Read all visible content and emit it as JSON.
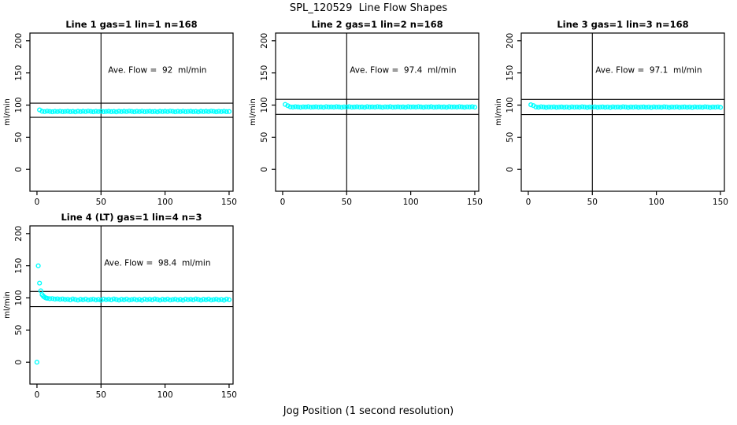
{
  "figure": {
    "main_title": "SPL_120529  Line Flow Shapes",
    "x_axis_label": "Jog Position (1 second resolution)",
    "y_axis_label": "ml/min",
    "background_color": "#FFFFFF",
    "point_color": "#00FFFF",
    "line_color": "#000000"
  },
  "chart_data": {
    "type": "scatter",
    "title": "SPL_120529  Line Flow Shapes",
    "xlabel": "Jog Position (1 second resolution)",
    "ylabel": "ml/min",
    "marker": "open-circle",
    "grid": false,
    "x_ticks": [
      0,
      50,
      100,
      150
    ],
    "y_ticks": [
      0,
      50,
      100,
      150,
      200
    ],
    "x_domain": [
      -5.5,
      153.1
    ],
    "y_domain": [
      -34,
      212
    ],
    "subplots": [
      {
        "title": "Line 1 gas=1 lin=1 n=168",
        "annotation": "Ave. Flow =  92  ml/min",
        "ave_flow_ml_min": 92,
        "n_points": 168,
        "vline_x": 50,
        "hlines": [
          103,
          81
        ],
        "series": {
          "x_start": 2,
          "x_step": 2,
          "y": [
            92.5,
            90.3,
            89.8,
            90.6,
            90.1,
            89.6,
            90.2,
            89.9,
            90.5,
            89.7,
            90.0,
            90.4,
            89.7,
            90.1,
            89.5,
            90.4,
            89.9,
            90.3,
            89.8,
            90.6,
            90.1,
            89.6,
            90.2,
            89.9,
            90.5,
            89.7,
            90.0,
            90.4,
            89.7,
            90.1,
            89.5,
            90.4,
            89.9,
            90.3,
            89.8,
            90.6,
            90.1,
            89.6,
            90.2,
            89.9,
            90.5,
            89.7,
            90.0,
            90.4,
            89.7,
            90.1,
            89.5,
            90.4,
            89.9,
            90.3,
            89.8,
            90.6,
            90.1,
            89.6,
            90.2,
            89.9,
            90.5,
            89.7,
            90.0,
            90.4,
            89.7,
            90.1,
            89.5,
            90.4,
            89.9,
            90.3,
            89.8,
            90.6,
            90.1,
            89.6,
            90.2,
            89.9,
            90.5,
            89.7,
            90.0
          ]
        },
        "extra_points": []
      },
      {
        "title": "Line 2 gas=1 lin=2 n=168",
        "annotation": "Ave. Flow =  97.4  ml/min",
        "ave_flow_ml_min": 97.4,
        "n_points": 168,
        "vline_x": 50,
        "hlines": [
          109,
          85.5
        ],
        "series": {
          "x_start": 2,
          "x_step": 2,
          "y": [
            101.0,
            99.0,
            97.2,
            96.8,
            97.5,
            97.1,
            96.6,
            97.2,
            96.9,
            97.4,
            96.7,
            97.0,
            97.3,
            96.8,
            97.1,
            96.6,
            97.4,
            96.9,
            97.2,
            96.8,
            97.5,
            97.1,
            96.6,
            97.2,
            96.9,
            97.4,
            96.7,
            97.0,
            97.3,
            96.8,
            97.1,
            96.6,
            97.4,
            96.9,
            97.2,
            96.8,
            97.5,
            97.1,
            96.6,
            97.2,
            96.9,
            97.4,
            96.7,
            97.0,
            97.3,
            96.8,
            97.1,
            96.6,
            97.4,
            96.9,
            97.2,
            96.8,
            97.5,
            97.1,
            96.6,
            97.2,
            96.9,
            97.4,
            96.7,
            97.0,
            97.3,
            96.8,
            97.1,
            96.6,
            97.4,
            96.9,
            97.2,
            96.8,
            97.5,
            97.1,
            96.6,
            97.2,
            96.9,
            97.4,
            96.7
          ]
        },
        "extra_points": []
      },
      {
        "title": "Line 3 gas=1 lin=3 n=168",
        "annotation": "Ave. Flow =  97.1  ml/min",
        "ave_flow_ml_min": 97.1,
        "n_points": 168,
        "vline_x": 50,
        "hlines": [
          108.8,
          85.3
        ],
        "series": {
          "x_start": 2,
          "x_step": 2,
          "y": [
            100.5,
            99.2,
            97.0,
            96.6,
            97.3,
            96.9,
            96.4,
            97.0,
            96.7,
            97.2,
            96.5,
            96.8,
            97.1,
            96.6,
            96.9,
            96.4,
            97.2,
            96.7,
            97.0,
            96.6,
            97.3,
            96.9,
            96.4,
            97.0,
            96.7,
            97.2,
            96.5,
            96.8,
            97.1,
            96.6,
            96.9,
            96.4,
            97.2,
            96.7,
            97.0,
            96.6,
            97.3,
            96.9,
            96.4,
            97.0,
            96.7,
            97.2,
            96.5,
            96.8,
            97.1,
            96.6,
            96.9,
            96.4,
            97.2,
            96.7,
            97.0,
            96.6,
            97.3,
            96.9,
            96.4,
            97.0,
            96.7,
            97.2,
            96.5,
            96.8,
            97.1,
            96.6,
            96.9,
            96.4,
            97.2,
            96.7,
            97.0,
            96.6,
            97.3,
            96.9,
            96.4,
            97.0,
            96.7,
            97.2,
            96.5
          ]
        },
        "extra_points": []
      },
      {
        "title": "Line 4 (LT) gas=1 lin=4 n=3",
        "annotation": "Ave. Flow =  98.4  ml/min",
        "ave_flow_ml_min": 98.4,
        "n_points": 3,
        "vline_x": 50,
        "hlines": [
          110,
          86.5
        ],
        "series": {
          "x_start": 8,
          "x_step": 2,
          "y": [
            99.4,
            98.8,
            99.0,
            98.2,
            98.6,
            97.8,
            98.3,
            97.5,
            97.8,
            96.9,
            98.3,
            97.4,
            96.6,
            97.7,
            97.1,
            98.1,
            96.7,
            97.3,
            97.9,
            96.8,
            97.5,
            96.5,
            98.0,
            97.2,
            97.8,
            96.9,
            98.3,
            97.4,
            96.6,
            97.7,
            97.1,
            98.1,
            96.7,
            97.3,
            97.9,
            96.8,
            97.5,
            96.5,
            98.0,
            97.2,
            97.8,
            96.9,
            98.3,
            97.4,
            96.6,
            97.7,
            97.1,
            98.1,
            96.7,
            97.3,
            97.9,
            96.8,
            97.5,
            96.5,
            98.0,
            97.2,
            97.8,
            96.9,
            98.3,
            97.4,
            96.6,
            97.7,
            97.1,
            98.1,
            96.7,
            97.3,
            97.9,
            96.8,
            97.5,
            96.5,
            98.0,
            97.2
          ]
        },
        "extra_points": [
          [
            0,
            0
          ],
          [
            1,
            150
          ],
          [
            2,
            123
          ],
          [
            3,
            111
          ],
          [
            4,
            105
          ],
          [
            5,
            102.5
          ],
          [
            6,
            101
          ],
          [
            7,
            100
          ]
        ]
      }
    ]
  }
}
